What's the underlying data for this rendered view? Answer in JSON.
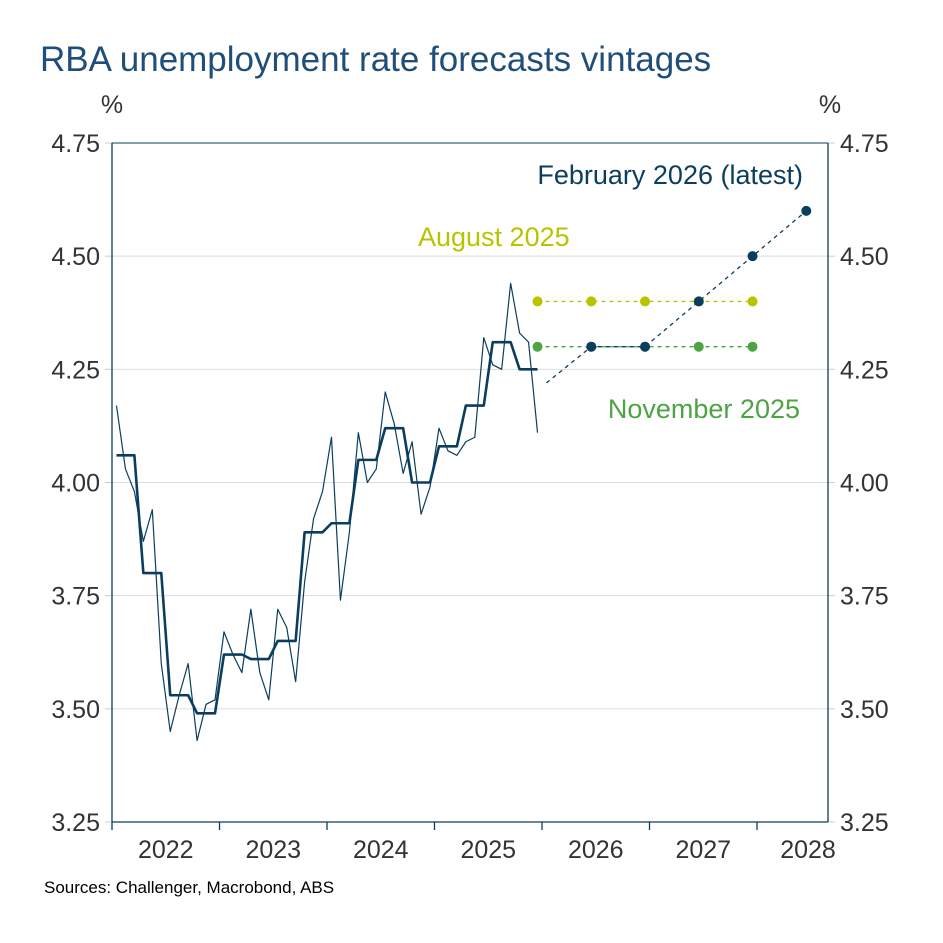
{
  "title": "RBA unemployment rate forecasts vintages",
  "source": "Sources: Challenger, Macrobond, ABS",
  "chart_data": {
    "type": "line",
    "title": "RBA unemployment rate forecasts vintages",
    "ylabel_left": "%",
    "ylabel_right": "%",
    "ylim": [
      3.25,
      4.75
    ],
    "yticks": [
      "3.25",
      "3.50",
      "3.75",
      "4.00",
      "4.25",
      "4.50",
      "4.75"
    ],
    "xlim": [
      "2022-01",
      "2028-08"
    ],
    "xticks": [
      "2022",
      "2023",
      "2024",
      "2025",
      "2026",
      "2027",
      "2028"
    ],
    "grid": "horizontal",
    "colors": {
      "navy": "#0b3d5e",
      "august": "#b8c400",
      "november": "#4ea345",
      "title": "#1f4e79",
      "grid": "#dddddd"
    },
    "monthly": {
      "start": "2022-01",
      "values": [
        4.17,
        4.03,
        3.98,
        3.87,
        3.94,
        3.6,
        3.45,
        3.53,
        3.6,
        3.43,
        3.51,
        3.52,
        3.67,
        3.62,
        3.58,
        3.72,
        3.58,
        3.52,
        3.72,
        3.68,
        3.56,
        3.78,
        3.92,
        3.98,
        4.1,
        3.74,
        3.89,
        4.11,
        4.0,
        4.03,
        4.2,
        4.13,
        4.02,
        4.09,
        3.93,
        3.99,
        4.12,
        4.07,
        4.06,
        4.09,
        4.1,
        4.32,
        4.26,
        4.25,
        4.44,
        4.33,
        4.31,
        4.11
      ]
    },
    "quarterly": {
      "start": "2022-Q1",
      "values": [
        4.06,
        3.8,
        3.53,
        3.49,
        3.62,
        3.61,
        3.65,
        3.89,
        3.91,
        4.05,
        4.12,
        4.0,
        4.08,
        4.17,
        4.31,
        4.25
      ]
    },
    "series": [
      {
        "name": "August 2025",
        "color": "#b8c400",
        "points": [
          [
            "2025-12",
            4.4
          ],
          [
            "2026-06",
            4.4
          ],
          [
            "2026-12",
            4.4
          ],
          [
            "2027-06",
            4.4
          ],
          [
            "2027-12",
            4.4
          ]
        ]
      },
      {
        "name": "November 2025",
        "color": "#4ea345",
        "points": [
          [
            "2025-12",
            4.3
          ],
          [
            "2026-06",
            4.3
          ],
          [
            "2026-12",
            4.3
          ],
          [
            "2027-06",
            4.3
          ],
          [
            "2027-12",
            4.3
          ]
        ]
      },
      {
        "name": "February 2026 (latest)",
        "color": "#0b3d5e",
        "start": [
          "2026-01",
          4.22
        ],
        "points": [
          [
            "2026-06",
            4.3
          ],
          [
            "2026-12",
            4.3
          ],
          [
            "2027-06",
            4.4
          ],
          [
            "2027-12",
            4.5
          ],
          [
            "2028-06",
            4.6
          ]
        ]
      }
    ]
  }
}
